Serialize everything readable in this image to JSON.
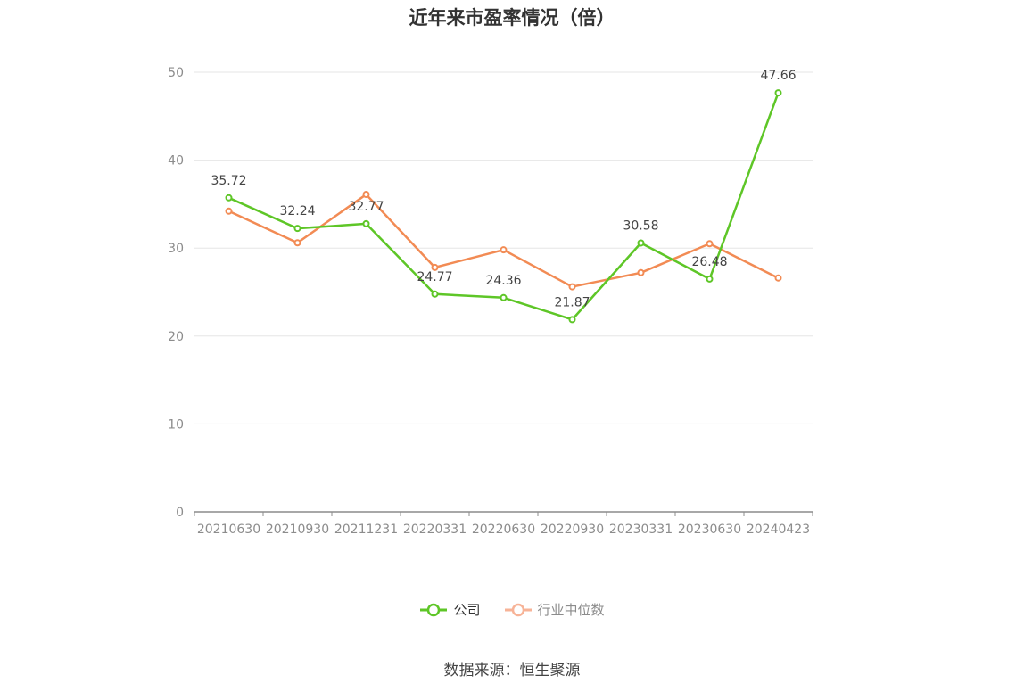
{
  "title": "近年来市盈率情况（倍）",
  "source": "数据来源：恒生聚源",
  "colors": {
    "company": "#5ec627",
    "industry": "#f28b54",
    "industry_legend": "#f7b397",
    "grid": "#e6e6e6",
    "axis": "#8c8c8c"
  },
  "chart_data": {
    "type": "line",
    "categories": [
      "20210630",
      "20210930",
      "20211231",
      "20220331",
      "20220630",
      "20220930",
      "20230331",
      "20230630",
      "20240423"
    ],
    "ylim": [
      0,
      50
    ],
    "yticks": [
      0,
      10,
      20,
      30,
      40,
      50
    ],
    "grid": true,
    "legend_position": "bottom-center",
    "series": [
      {
        "name": "公司",
        "values": [
          35.72,
          32.24,
          32.77,
          24.77,
          24.36,
          21.87,
          30.58,
          26.48,
          47.66
        ],
        "labels": [
          "35.72",
          "32.24",
          "32.77",
          "24.77",
          "24.36",
          "21.87",
          "30.58",
          "26.48",
          "47.66"
        ]
      },
      {
        "name": "行业中位数",
        "values": [
          34.2,
          30.6,
          36.1,
          27.8,
          29.8,
          25.6,
          27.2,
          30.5,
          26.6
        ]
      }
    ]
  }
}
